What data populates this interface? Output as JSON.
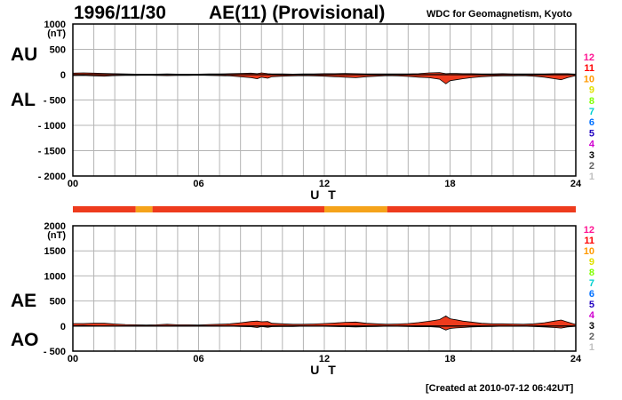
{
  "header": {
    "date": "1996/11/30",
    "title": "AE(11) (Provisional)",
    "source": "WDC for Geomagnetism, Kyoto"
  },
  "footer": "[Created at 2010-07-12 06:42UT]",
  "row_labels": {
    "au": "AU",
    "al": "AL",
    "ae": "AE",
    "ao": "AO"
  },
  "scale_legend": {
    "values": [
      "12",
      "11",
      "10",
      "9",
      "8",
      "7",
      "6",
      "5",
      "4",
      "3",
      "2",
      "1"
    ],
    "colors": [
      "#ff1493",
      "#ff0000",
      "#ff9900",
      "#e0e000",
      "#80ff00",
      "#00d0d0",
      "#0070ff",
      "#2000c0",
      "#d000d0",
      "#000000",
      "#606060",
      "#c0c0c0"
    ]
  },
  "station_bar": {
    "segments": [
      {
        "start": 0,
        "end": 3.0,
        "color": "#ee3b1d"
      },
      {
        "start": 3.0,
        "end": 3.8,
        "color": "#f5a31a"
      },
      {
        "start": 3.8,
        "end": 12.0,
        "color": "#ee3b1d"
      },
      {
        "start": 12.0,
        "end": 15.0,
        "color": "#f5a31a"
      },
      {
        "start": 15.0,
        "end": 24.0,
        "color": "#ee3b1d"
      }
    ]
  },
  "chart_data": [
    {
      "type": "area",
      "panel": "AU / AL",
      "xlabel": "U T",
      "ylabel_unit": "(nT)",
      "xlim": [
        0,
        24
      ],
      "ylim": [
        -2000,
        1000
      ],
      "x_ticks": [
        "00",
        "06",
        "12",
        "18",
        "24"
      ],
      "y_ticks": [
        "1000",
        "500",
        "0",
        "- 500",
        "- 1000",
        "- 1500",
        "- 2000"
      ],
      "grid": true,
      "fill_color": "#ee3b1d",
      "fill_color_alt": "#f5a31a",
      "x": [
        0,
        0.5,
        1,
        1.5,
        2,
        2.5,
        3,
        3.5,
        4,
        4.5,
        5,
        5.5,
        6,
        6.5,
        7,
        7.5,
        8,
        8.5,
        8.8,
        9,
        9.3,
        9.5,
        10,
        10.5,
        11,
        11.5,
        12,
        12.5,
        13,
        13.5,
        14,
        14.5,
        15,
        15.5,
        16,
        16.5,
        17,
        17.5,
        17.8,
        18,
        18.3,
        18.6,
        19,
        19.5,
        20,
        20.5,
        21,
        21.5,
        22,
        22.5,
        23,
        23.3,
        23.6,
        24
      ],
      "series": [
        {
          "name": "AU",
          "values": [
            30,
            35,
            30,
            25,
            20,
            15,
            10,
            10,
            10,
            15,
            10,
            10,
            10,
            15,
            15,
            20,
            25,
            30,
            20,
            35,
            20,
            15,
            15,
            10,
            15,
            15,
            20,
            20,
            25,
            20,
            15,
            15,
            15,
            15,
            15,
            20,
            35,
            40,
            20,
            25,
            25,
            20,
            20,
            15,
            15,
            20,
            15,
            15,
            15,
            15,
            20,
            20,
            20,
            10
          ]
        },
        {
          "name": "AL",
          "values": [
            -20,
            -15,
            -25,
            -30,
            -20,
            -15,
            -15,
            -10,
            -15,
            -20,
            -15,
            -15,
            -10,
            -15,
            -20,
            -25,
            -40,
            -60,
            -80,
            -50,
            -70,
            -40,
            -30,
            -25,
            -20,
            -25,
            -30,
            -40,
            -50,
            -60,
            -40,
            -30,
            -20,
            -25,
            -35,
            -50,
            -60,
            -90,
            -180,
            -120,
            -100,
            -80,
            -60,
            -40,
            -30,
            -25,
            -25,
            -20,
            -30,
            -50,
            -80,
            -100,
            -60,
            -20
          ]
        }
      ]
    },
    {
      "type": "area",
      "panel": "AE / AO",
      "xlabel": "U T",
      "ylabel_unit": "(nT)",
      "xlim": [
        0,
        24
      ],
      "ylim": [
        -500,
        2000
      ],
      "x_ticks": [
        "00",
        "06",
        "12",
        "18",
        "24"
      ],
      "y_ticks": [
        "2000",
        "1500",
        "1000",
        "500",
        "0",
        "- 500"
      ],
      "grid": true,
      "fill_color": "#ee3b1d",
      "fill_color_alt": "#f5a31a",
      "x": [
        0,
        0.5,
        1,
        1.5,
        2,
        2.5,
        3,
        3.5,
        4,
        4.5,
        5,
        5.5,
        6,
        6.5,
        7,
        7.5,
        8,
        8.5,
        8.8,
        9,
        9.3,
        9.5,
        10,
        10.5,
        11,
        11.5,
        12,
        12.5,
        13,
        13.5,
        14,
        14.5,
        15,
        15.5,
        16,
        16.5,
        17,
        17.5,
        17.8,
        18,
        18.3,
        18.6,
        19,
        19.5,
        20,
        20.5,
        21,
        21.5,
        22,
        22.5,
        23,
        23.3,
        23.6,
        24
      ],
      "series": [
        {
          "name": "AE",
          "values": [
            50,
            50,
            55,
            55,
            40,
            30,
            25,
            20,
            25,
            35,
            25,
            25,
            20,
            30,
            35,
            45,
            65,
            90,
            100,
            85,
            90,
            55,
            45,
            35,
            35,
            40,
            50,
            60,
            75,
            80,
            55,
            45,
            35,
            40,
            50,
            70,
            95,
            130,
            200,
            145,
            125,
            100,
            80,
            55,
            45,
            45,
            40,
            35,
            45,
            65,
            100,
            120,
            80,
            30
          ]
        },
        {
          "name": "AO",
          "values": [
            5,
            10,
            3,
            -3,
            0,
            0,
            -3,
            0,
            -3,
            -3,
            -3,
            -3,
            0,
            0,
            -3,
            -3,
            -8,
            -15,
            -30,
            -8,
            -25,
            -13,
            -8,
            -8,
            -3,
            -5,
            -5,
            -10,
            -13,
            -20,
            -13,
            -8,
            -3,
            -5,
            -10,
            -15,
            -13,
            -25,
            -80,
            -48,
            -38,
            -30,
            -20,
            -13,
            -8,
            -3,
            -5,
            -3,
            -8,
            -18,
            -30,
            -40,
            -20,
            -5
          ]
        }
      ]
    }
  ]
}
